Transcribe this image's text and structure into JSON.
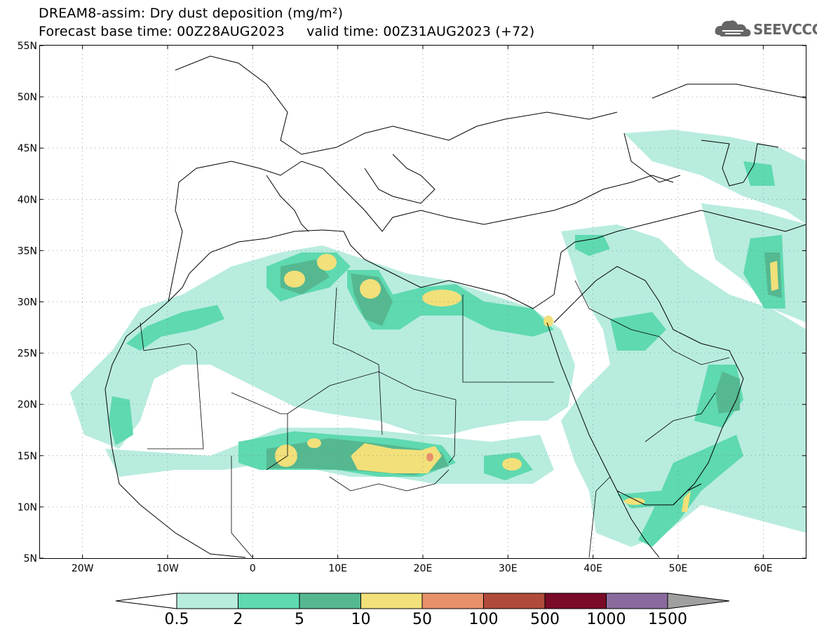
{
  "header": {
    "title_line1": "DREAM8-assim: Dry dust deposition (mg/m²)",
    "title_line2": "Forecast base time: 00Z28AUG2023     valid time: 00Z31AUG2023 (+72)",
    "logo_text": "SEEVCCC",
    "logo_icon": "cloud-logo-icon"
  },
  "map": {
    "lat_labels": [
      "55N",
      "50N",
      "45N",
      "40N",
      "35N",
      "30N",
      "25N",
      "20N",
      "15N",
      "10N",
      "5N"
    ],
    "lon_labels": [
      "20W",
      "10W",
      "0",
      "10E",
      "20E",
      "30E",
      "40E",
      "50E",
      "60E"
    ],
    "lat_range": [
      5,
      55
    ],
    "lon_range": [
      -25,
      65
    ],
    "grid": "dotted"
  },
  "colorbar": {
    "labels": [
      "0.5",
      "2",
      "5",
      "10",
      "50",
      "100",
      "500",
      "1000",
      "1500"
    ],
    "colors": [
      "#b8ecdf",
      "#5ed9b0",
      "#55b890",
      "#f2e07a",
      "#e8906a",
      "#b04a3a",
      "#7a0a28",
      "#8a6a9c",
      "#a0a0a0"
    ]
  }
}
